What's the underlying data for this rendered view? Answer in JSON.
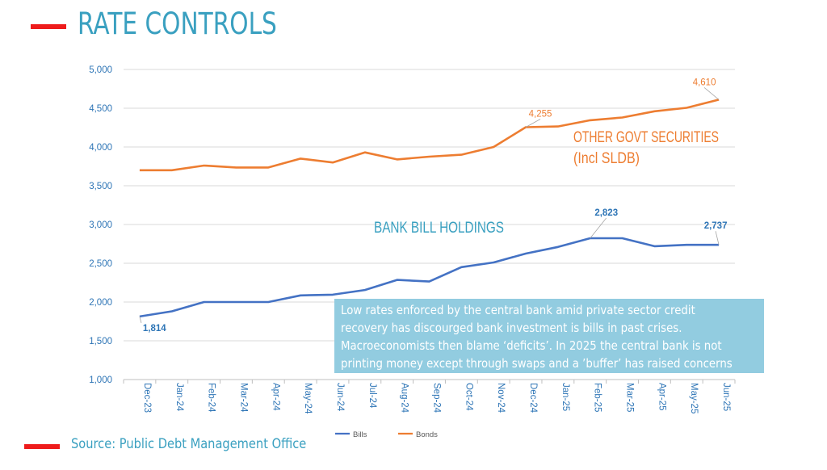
{
  "header": {
    "title": "RATE  CONTROLS"
  },
  "footer": {
    "source": "Source: Public Debt Management Office"
  },
  "note": {
    "lines": [
      "Low rates enforced by the central bank amid private sector credit",
      "recovery has discourged bank investment is bills in past crises.",
      "Macroeconomists then blame ‘deficits’. In 2025 the central bank is not",
      "printing money except through swaps and a ’buffer’ has raised concerns"
    ]
  },
  "colors": {
    "bills": "#4472c4",
    "bonds": "#ed7d31",
    "accent": "#ee1c1c",
    "title": "#3aa0c0",
    "note_bg": "#92cce0"
  },
  "chart_data": {
    "type": "line",
    "categories": [
      "Dec-23",
      "Jan-24",
      "Feb-24",
      "Mar-24",
      "Apr-24",
      "May-24",
      "Jun-24",
      "Jul-24",
      "Aug-24",
      "Sep-24",
      "Oct-24",
      "Nov-24",
      "Dec-24",
      "Jan-25",
      "Feb-25",
      "Mar-25",
      "Apr-25",
      "May-25",
      "Jun-25"
    ],
    "series": [
      {
        "name": "Bills",
        "values": [
          1814,
          1880,
          2000,
          2000,
          2000,
          2085,
          2095,
          2155,
          2285,
          2265,
          2450,
          2510,
          2625,
          2710,
          2823,
          2823,
          2720,
          2737,
          2737
        ]
      },
      {
        "name": "Bonds",
        "values": [
          3700,
          3700,
          3760,
          3735,
          3735,
          3850,
          3800,
          3930,
          3840,
          3875,
          3900,
          4000,
          4255,
          4265,
          4345,
          4380,
          4460,
          4505,
          4610
        ]
      }
    ],
    "ylim": [
      1000,
      5000
    ],
    "yticks": [
      "1,000",
      "1,500",
      "2,000",
      "2,500",
      "3,000",
      "3,500",
      "4,000",
      "4,500",
      "5,000"
    ],
    "data_labels": [
      {
        "series": 0,
        "index": 0,
        "text": "1,814"
      },
      {
        "series": 0,
        "index": 14,
        "text": "2,823"
      },
      {
        "series": 0,
        "index": 18,
        "text": "2,737"
      },
      {
        "series": 1,
        "index": 12,
        "text": "4,255"
      },
      {
        "series": 1,
        "index": 18,
        "text": "4,610"
      }
    ],
    "annotations": {
      "bonds_line1": "OTHER GOVT SECURITIES",
      "bonds_line2": "(Incl SLDB)",
      "bills": "BANK BILL HOLDINGS"
    },
    "legend": [
      "Bills",
      "Bonds"
    ],
    "grid": true,
    "legend_position": "bottom"
  }
}
